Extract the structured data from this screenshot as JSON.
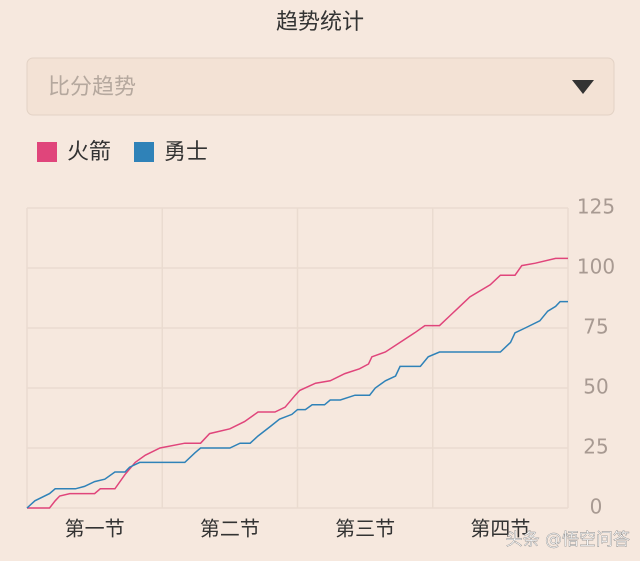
{
  "header": {
    "title": "趋势统计"
  },
  "dropdown": {
    "selected": "比分趋势"
  },
  "chart_data": {
    "type": "line",
    "series": [
      {
        "name": "火箭",
        "color": "#e0457b",
        "x": [
          0,
          2,
          2.5,
          2.9,
          3.8,
          6,
          6.5,
          7.8,
          8.7,
          9.6,
          10.5,
          11.8,
          14,
          15.4,
          16.2,
          18,
          19.3,
          20.5,
          22,
          22.9,
          23.8,
          24.2,
          25.6,
          26.9,
          28.2,
          29.5,
          30.3,
          30.6,
          31.8,
          33.1,
          34.4,
          35.3,
          36.6,
          37.5,
          38.4,
          39.3,
          41.1,
          42,
          43.3,
          43.9,
          45.1,
          46.9,
          48
        ],
        "values": [
          0,
          0,
          3,
          5,
          6,
          6,
          8,
          8,
          14,
          19,
          22,
          25,
          27,
          27,
          31,
          33,
          36,
          40,
          40,
          42,
          47,
          49,
          52,
          53,
          56,
          58,
          60,
          63,
          65,
          69,
          73,
          76,
          76,
          80,
          84,
          88,
          93,
          97,
          97,
          101,
          102,
          104,
          104
        ]
      },
      {
        "name": "勇士",
        "color": "#2f82b8",
        "x": [
          0,
          0.7,
          2.0,
          2.5,
          4.3,
          5.1,
          6.0,
          6.9,
          7.8,
          8.7,
          9.1,
          10.0,
          14.0,
          14.9,
          15.4,
          18.0,
          18.9,
          19.8,
          20.5,
          21.6,
          22.4,
          23.5,
          24.0,
          24.7,
          25.3,
          26.4,
          26.9,
          27.8,
          29.1,
          30.4,
          30.9,
          31.8,
          32.7,
          33.1,
          34.9,
          35.6,
          36.6,
          42.0,
          42.9,
          43.3,
          44.2,
          45.5,
          46.2,
          46.9,
          47.3,
          48
        ],
        "values": [
          0,
          3,
          6,
          8,
          8,
          9,
          11,
          12,
          15,
          15,
          17,
          19,
          19,
          23,
          25,
          25,
          27,
          27,
          30,
          34,
          37,
          39,
          41,
          41,
          43,
          43,
          45,
          45,
          47,
          47,
          50,
          53,
          55,
          59,
          59,
          63,
          65,
          65,
          69,
          73,
          75,
          78,
          82,
          84,
          86,
          86
        ]
      }
    ],
    "xlim": [
      0,
      48
    ],
    "xticks": [
      {
        "value": 6,
        "label": "第一节"
      },
      {
        "value": 18,
        "label": "第二节"
      },
      {
        "value": 30,
        "label": "第三节"
      },
      {
        "value": 42,
        "label": "第四节"
      }
    ],
    "xgrid": [
      0,
      12,
      24,
      36,
      48
    ],
    "ylim": [
      0,
      125
    ],
    "yticks": [
      0,
      25,
      50,
      75,
      100,
      125
    ],
    "grid": true
  },
  "watermark": "头条 @悟空问答"
}
